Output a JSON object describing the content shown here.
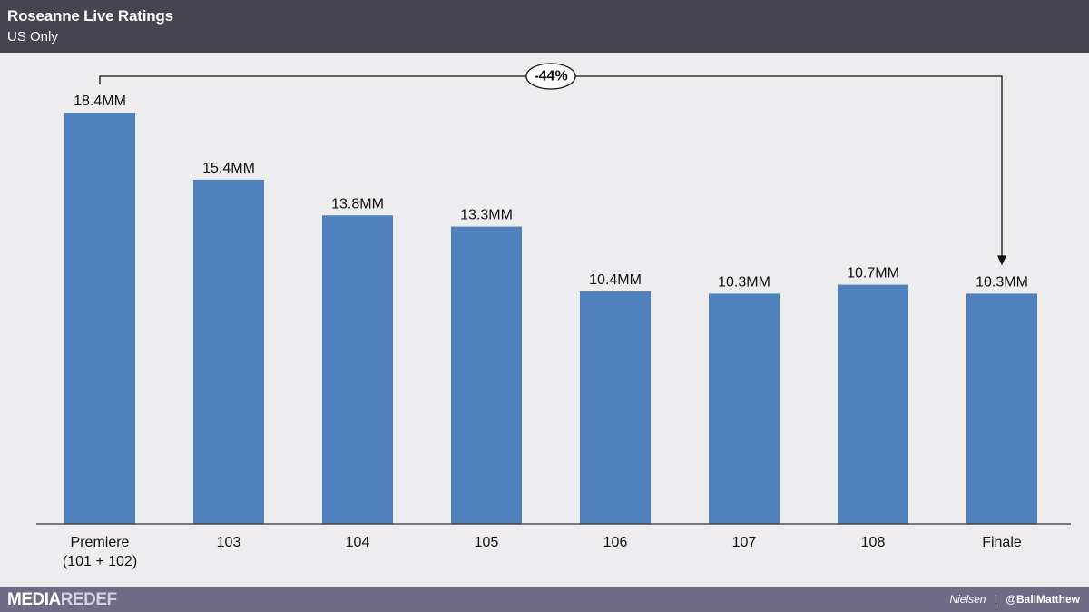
{
  "header": {
    "title": "Roseanne Live Ratings",
    "subtitle": "US Only"
  },
  "chart_data": {
    "type": "bar",
    "categories": [
      [
        "Premiere",
        "(101 + 102)"
      ],
      [
        "103"
      ],
      [
        "104"
      ],
      [
        "105"
      ],
      [
        "106"
      ],
      [
        "107"
      ],
      [
        "108"
      ],
      [
        "Finale"
      ]
    ],
    "values": [
      18.4,
      15.4,
      13.8,
      13.3,
      10.4,
      10.3,
      10.7,
      10.3
    ],
    "data_labels": [
      "18.4MM",
      "15.4MM",
      "13.8MM",
      "13.3MM",
      "10.4MM",
      "10.3MM",
      "10.7MM",
      "10.3MM"
    ],
    "title": "Roseanne Live Ratings",
    "subtitle": "US Only",
    "xlabel": "",
    "ylabel": "",
    "ylim": [
      0,
      18.4
    ],
    "grid": false,
    "legend": "none",
    "bar_color": "#4f81bd",
    "annotation": {
      "text": "-44%",
      "from_category": "Premiere",
      "to_category": "Finale"
    }
  },
  "footer": {
    "logo_part1": "MEDIA",
    "logo_part2": "REDEF",
    "source": "Nielsen",
    "separator": "|",
    "handle": "@BallMatthew"
  }
}
